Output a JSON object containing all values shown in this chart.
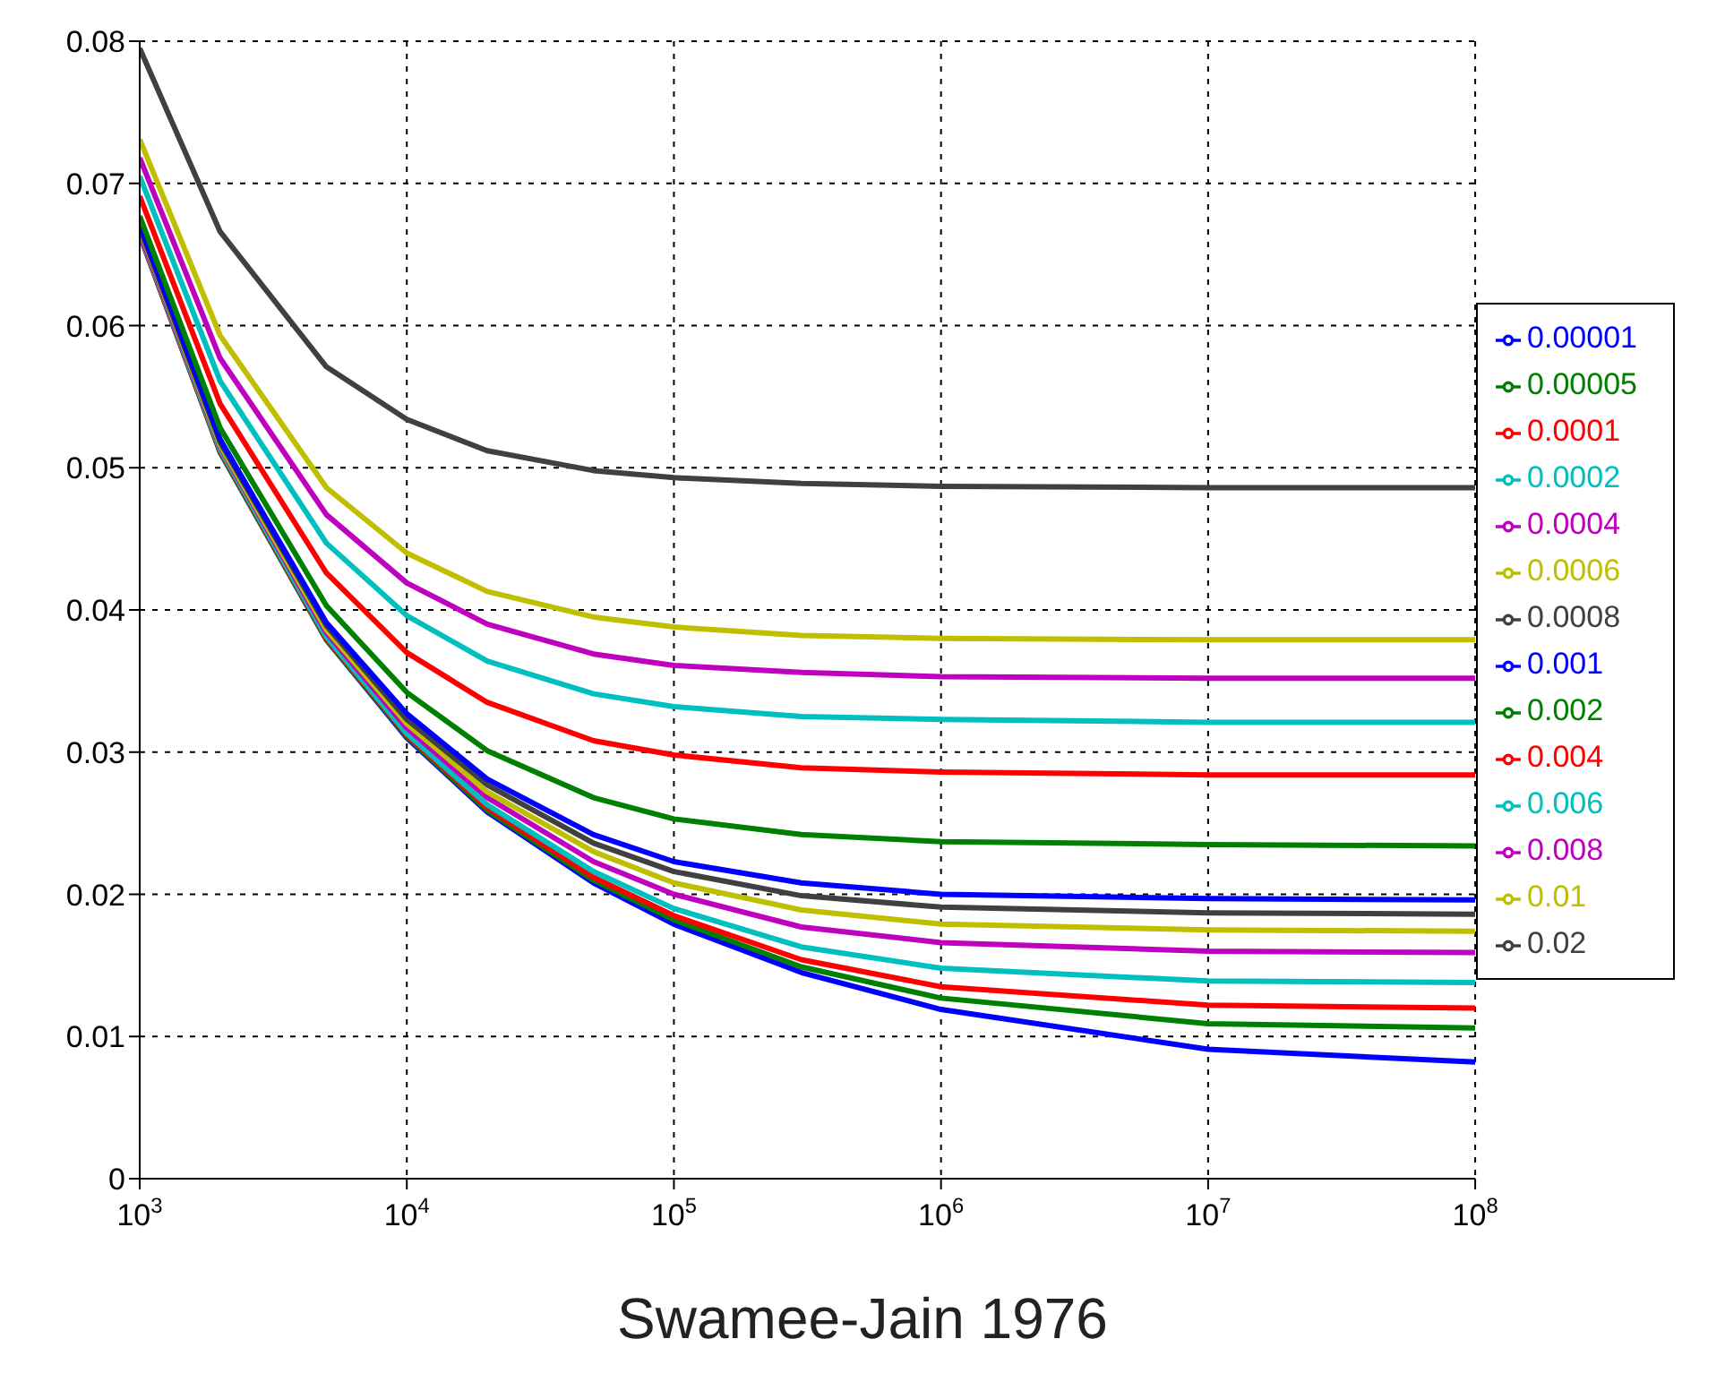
{
  "chart_data": {
    "type": "line",
    "title": "Swamee-Jain 1976",
    "x": [
      1000,
      2000,
      5000,
      10000,
      20000,
      50000,
      100000,
      300000,
      1000000,
      10000000,
      100000000
    ],
    "log": "x",
    "grid": true,
    "legend": "right",
    "xlim": [
      1000,
      100000000
    ],
    "xticks": [
      {
        "value": 1000,
        "label": "10$^{3}$"
      },
      {
        "value": 10000,
        "label": "10$^{4}$"
      },
      {
        "value": 100000,
        "label": "10$^{5}$"
      },
      {
        "value": 1000000,
        "label": "10$^{6}$"
      },
      {
        "value": 10000000,
        "label": "10$^{7}$"
      },
      {
        "value": 100000000,
        "label": "10$^{8}$"
      }
    ],
    "ylim": [
      0,
      0.08
    ],
    "yticks": [
      0,
      0.01,
      0.02,
      0.03,
      0.04,
      0.05,
      0.06,
      0.07,
      0.08
    ],
    "series": [
      {
        "name": "0.00001",
        "color": "#0000ff",
        "values": [
          0.0664,
          0.0511,
          0.0379,
          0.031,
          0.0258,
          0.0208,
          0.0179,
          0.0145,
          0.0119,
          0.0091,
          0.0082
        ]
      },
      {
        "name": "0.00005",
        "color": "#008000",
        "values": [
          0.0664,
          0.0511,
          0.0379,
          0.0311,
          0.0259,
          0.021,
          0.0182,
          0.0149,
          0.0127,
          0.0109,
          0.0106
        ]
      },
      {
        "name": "0.0001",
        "color": "#ff0000",
        "values": [
          0.0664,
          0.0512,
          0.038,
          0.0312,
          0.0261,
          0.0212,
          0.0185,
          0.0154,
          0.0135,
          0.0122,
          0.012
        ]
      },
      {
        "name": "0.0002",
        "color": "#00bfbf",
        "values": [
          0.0665,
          0.0513,
          0.0381,
          0.0313,
          0.0263,
          0.0216,
          0.019,
          0.0163,
          0.0148,
          0.0139,
          0.0138
        ]
      },
      {
        "name": "0.0004",
        "color": "#bf00bf",
        "values": [
          0.0666,
          0.0515,
          0.0384,
          0.0317,
          0.0268,
          0.0223,
          0.02,
          0.0177,
          0.0166,
          0.016,
          0.0159
        ]
      },
      {
        "name": "0.0006",
        "color": "#bfbf00",
        "values": [
          0.0668,
          0.0516,
          0.0386,
          0.032,
          0.0272,
          0.023,
          0.0208,
          0.0189,
          0.0179,
          0.0175,
          0.0174
        ]
      },
      {
        "name": "0.0008",
        "color": "#404040",
        "values": [
          0.0669,
          0.0518,
          0.0389,
          0.0323,
          0.0277,
          0.0236,
          0.0216,
          0.0199,
          0.0191,
          0.0187,
          0.0186
        ]
      },
      {
        "name": "0.001",
        "color": "#0000ff",
        "values": [
          0.0671,
          0.052,
          0.0391,
          0.0327,
          0.0281,
          0.0242,
          0.0223,
          0.0208,
          0.02,
          0.0197,
          0.0196
        ]
      },
      {
        "name": "0.002",
        "color": "#008000",
        "values": [
          0.0677,
          0.0528,
          0.0403,
          0.0342,
          0.0301,
          0.0268,
          0.0253,
          0.0242,
          0.0237,
          0.0235,
          0.0234
        ]
      },
      {
        "name": "0.004",
        "color": "#ff0000",
        "values": [
          0.0691,
          0.0545,
          0.0426,
          0.037,
          0.0335,
          0.0308,
          0.0298,
          0.0289,
          0.0286,
          0.0284,
          0.0284
        ]
      },
      {
        "name": "0.006",
        "color": "#00bfbf",
        "values": [
          0.0705,
          0.0561,
          0.0447,
          0.0396,
          0.0364,
          0.0341,
          0.0332,
          0.0325,
          0.0323,
          0.0321,
          0.0321
        ]
      },
      {
        "name": "0.008",
        "color": "#bf00bf",
        "values": [
          0.0718,
          0.0577,
          0.0467,
          0.0419,
          0.039,
          0.0369,
          0.0361,
          0.0356,
          0.0353,
          0.0352,
          0.0352
        ]
      },
      {
        "name": "0.01",
        "color": "#bfbf00",
        "values": [
          0.0731,
          0.0593,
          0.0486,
          0.044,
          0.0413,
          0.0395,
          0.0388,
          0.0382,
          0.038,
          0.0379,
          0.0379
        ]
      },
      {
        "name": "0.02",
        "color": "#404040",
        "values": [
          0.0795,
          0.0666,
          0.0571,
          0.0534,
          0.0512,
          0.0498,
          0.0493,
          0.0489,
          0.0487,
          0.0486,
          0.0486
        ]
      }
    ]
  }
}
